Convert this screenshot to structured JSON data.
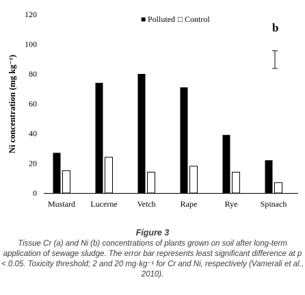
{
  "chart_data": {
    "type": "bar",
    "panel_label": "b",
    "ylabel": "Ni concentration (mg kg⁻¹)",
    "ylim": [
      0,
      120
    ],
    "yticks": [
      0,
      20,
      40,
      60,
      80,
      100,
      120
    ],
    "categories": [
      "Mustard",
      "Lucerne",
      "Vetch",
      "Rape",
      "Rye",
      "Spinach"
    ],
    "series": [
      {
        "name": "Polluted",
        "values": [
          27,
          74,
          80,
          71,
          39,
          22
        ],
        "color": "#000000",
        "fill": "solid"
      },
      {
        "name": "Control",
        "values": [
          15,
          24,
          14,
          18,
          14,
          7
        ],
        "color": "#000000",
        "fill": "hollow"
      }
    ],
    "legend": {
      "placement": "top-center",
      "markers": [
        "■",
        "□"
      ]
    },
    "error_bar": {
      "placement": "top-right",
      "description": "least significant difference"
    },
    "grid": false
  },
  "caption": {
    "title": "Figure 3",
    "text": "Tissue Cr (a) and Ni (b) concentrations of plants grown on soil after long-term application of sewage sludge. The error bar represents least significant difference at p < 0.05. Toxicity threshold; 2 and 20 mg·kg⁻¹ for Cr and Ni, respectively (Vamerali et al., 2010)."
  }
}
